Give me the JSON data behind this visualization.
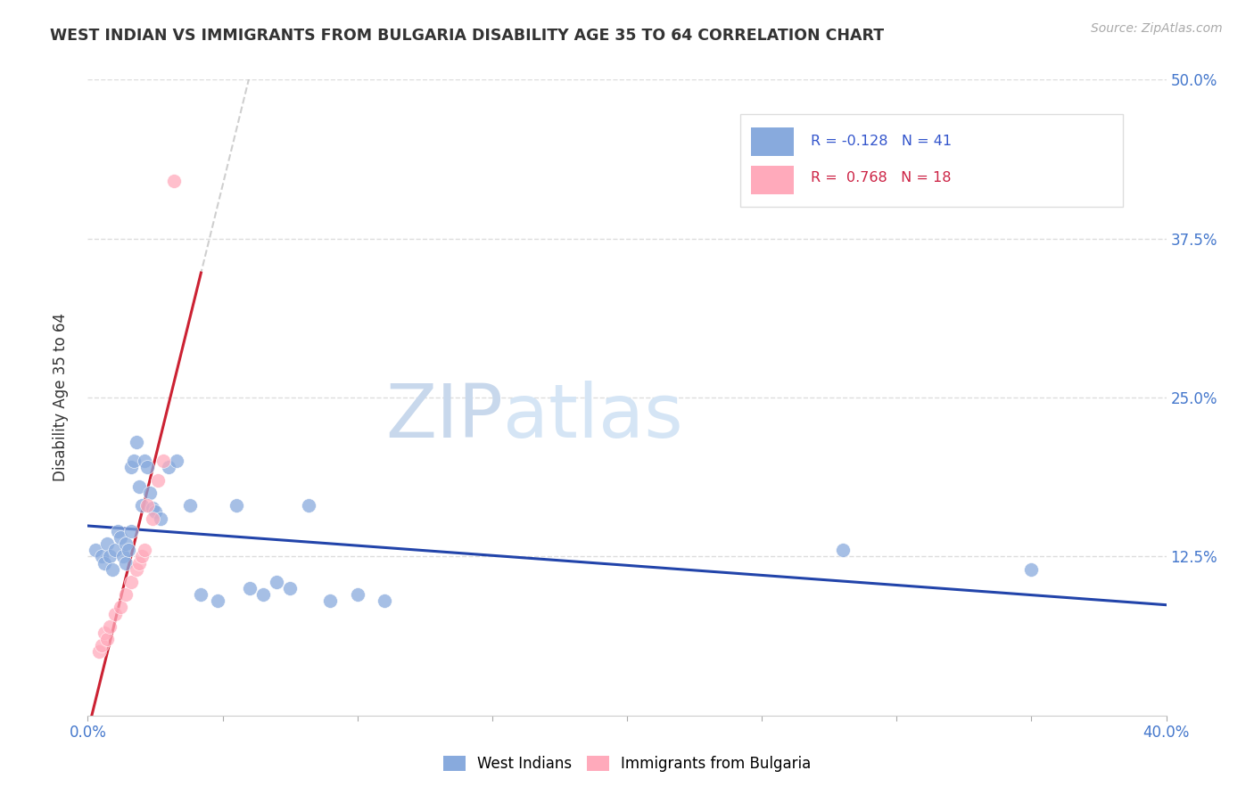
{
  "title": "WEST INDIAN VS IMMIGRANTS FROM BULGARIA DISABILITY AGE 35 TO 64 CORRELATION CHART",
  "source": "Source: ZipAtlas.com",
  "ylabel": "Disability Age 35 to 64",
  "legend_label1": "West Indians",
  "legend_label2": "Immigrants from Bulgaria",
  "R1": -0.128,
  "N1": 41,
  "R2": 0.768,
  "N2": 18,
  "xlim": [
    0.0,
    0.4
  ],
  "ylim": [
    0.0,
    0.5
  ],
  "grid_color": "#dddddd",
  "color1": "#88aadd",
  "color2": "#ffaabb",
  "trendline1_color": "#2244aa",
  "trendline2_color": "#cc2233",
  "watermark_zip_color": "#c8d8ec",
  "watermark_atlas_color": "#d5e5f5",
  "title_color": "#333333",
  "axis_color": "#4477cc",
  "west_indians_x": [
    0.003,
    0.005,
    0.006,
    0.007,
    0.008,
    0.009,
    0.01,
    0.011,
    0.012,
    0.013,
    0.014,
    0.014,
    0.015,
    0.016,
    0.016,
    0.017,
    0.018,
    0.019,
    0.02,
    0.021,
    0.022,
    0.023,
    0.024,
    0.025,
    0.027,
    0.03,
    0.033,
    0.038,
    0.042,
    0.048,
    0.055,
    0.06,
    0.065,
    0.07,
    0.075,
    0.082,
    0.09,
    0.1,
    0.11,
    0.28,
    0.35
  ],
  "west_indians_y": [
    0.13,
    0.125,
    0.12,
    0.135,
    0.125,
    0.115,
    0.13,
    0.145,
    0.14,
    0.125,
    0.135,
    0.12,
    0.13,
    0.145,
    0.195,
    0.2,
    0.215,
    0.18,
    0.165,
    0.2,
    0.195,
    0.175,
    0.163,
    0.16,
    0.155,
    0.195,
    0.2,
    0.165,
    0.095,
    0.09,
    0.165,
    0.1,
    0.095,
    0.105,
    0.1,
    0.165,
    0.09,
    0.095,
    0.09,
    0.13,
    0.115
  ],
  "bulgaria_x": [
    0.004,
    0.005,
    0.006,
    0.007,
    0.008,
    0.01,
    0.012,
    0.014,
    0.016,
    0.018,
    0.019,
    0.02,
    0.021,
    0.022,
    0.024,
    0.026,
    0.028,
    0.032
  ],
  "bulgaria_y": [
    0.05,
    0.055,
    0.065,
    0.06,
    0.07,
    0.08,
    0.085,
    0.095,
    0.105,
    0.115,
    0.12,
    0.125,
    0.13,
    0.165,
    0.155,
    0.185,
    0.2,
    0.42
  ]
}
